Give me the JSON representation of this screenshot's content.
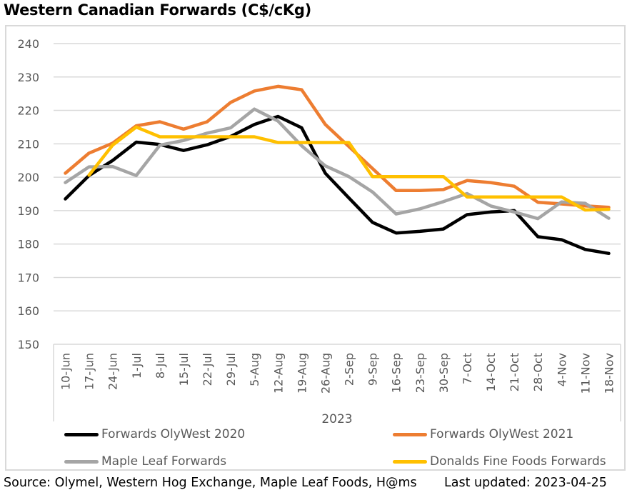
{
  "title": "Western Canadian Forwards (C$/cKg)",
  "footer": {
    "source": "Source: Olymel, Western Hog Exchange, Maple Leaf Foods, H@ms",
    "updated": "Last updated:  2023-04-25"
  },
  "chart_data": {
    "type": "line",
    "title": "Western Canadian Forwards (C$/cKg)",
    "xlabel": "2023",
    "ylabel": "",
    "ylim": [
      150,
      240
    ],
    "yticks": [
      150,
      160,
      170,
      180,
      190,
      200,
      210,
      220,
      230,
      240
    ],
    "grid": true,
    "legend_position": "bottom",
    "categories": [
      "10-Jun",
      "17-Jun",
      "24-Jun",
      "1-Jul",
      "8-Jul",
      "15-Jul",
      "22-Jul",
      "29-Jul",
      "5-Aug",
      "12-Aug",
      "19-Aug",
      "26-Aug",
      "2-Sep",
      "9-Sep",
      "16-Sep",
      "23-Sep",
      "30-Sep",
      "7-Oct",
      "14-Oct",
      "21-Oct",
      "28-Oct",
      "4-Nov",
      "11-Nov",
      "18-Nov"
    ],
    "series": [
      {
        "name": "Forwards OlyWest 2020",
        "color": "#000000",
        "values": [
          193.5,
          200.5,
          205,
          210.5,
          209.8,
          208,
          209.7,
          212.2,
          215.8,
          218.2,
          214.8,
          201.2,
          193.8,
          186.5,
          183.3,
          183.8,
          184.5,
          188.8,
          189.6,
          190,
          182.2,
          181.3,
          178.4,
          177.2
        ]
      },
      {
        "name": "Forwards OlyWest 2021",
        "color": "#ed7d31",
        "values": [
          201.2,
          207.2,
          210.2,
          215.4,
          216.6,
          214.4,
          216.6,
          222.4,
          225.8,
          227.2,
          226.2,
          215.8,
          209.2,
          202.6,
          196,
          196,
          196.3,
          199,
          198.4,
          197.3,
          192.5,
          192,
          191.4,
          191
        ]
      },
      {
        "name": "Maple Leaf Forwards",
        "color": "#a5a5a5",
        "values": [
          198.4,
          203.1,
          203.2,
          200.5,
          209.6,
          211,
          213.2,
          214.8,
          220.4,
          216.8,
          209.4,
          203.4,
          200.2,
          195.6,
          189,
          190.5,
          192.7,
          195.1,
          191.4,
          189.6,
          187.6,
          192.6,
          192.2,
          187.7
        ]
      },
      {
        "name": "Donalds Fine Foods Forwards",
        "color": "#ffc000",
        "values": [
          null,
          200.6,
          209.6,
          215,
          212.1,
          212.1,
          212.1,
          212.1,
          212.1,
          210.4,
          210.4,
          210.4,
          210.4,
          200.2,
          200.2,
          200.2,
          200.2,
          194.1,
          194.1,
          194.1,
          194.1,
          194.1,
          190.2,
          190.4
        ]
      }
    ]
  }
}
